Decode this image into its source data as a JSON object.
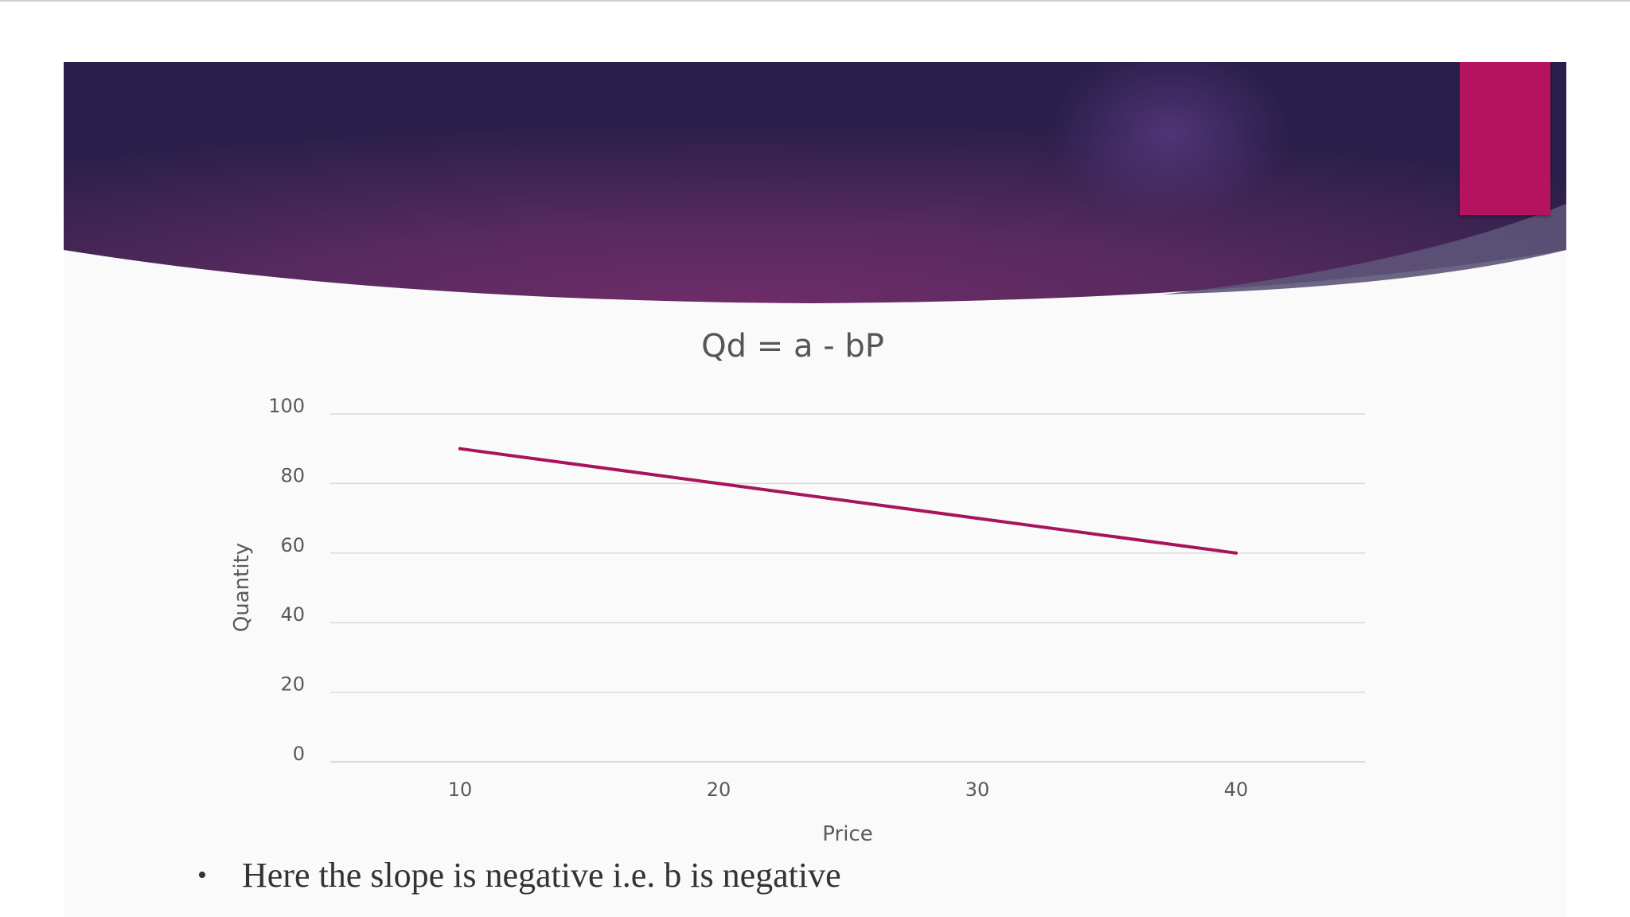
{
  "slide": {
    "bullet_mark": "•",
    "bullet_text": "Here the slope is negative i.e. b is negative"
  },
  "colors": {
    "accent": "#b5125f",
    "banner_dark": "#2a1f4a",
    "banner_mid": "#6a2d6a",
    "line": "#a8135e",
    "grid": "#d9d9d9"
  },
  "chart_data": {
    "type": "line",
    "title": "Qd = a - bP",
    "xlabel": "Price",
    "ylabel": "Quantity",
    "categories": [
      "10",
      "20",
      "30",
      "40"
    ],
    "x": [
      10,
      20,
      30,
      40
    ],
    "values": [
      90,
      80,
      70,
      60
    ],
    "ylim": [
      0,
      100
    ],
    "yticks": [
      0,
      20,
      40,
      60,
      80,
      100
    ],
    "grid": true,
    "legend": "none"
  }
}
